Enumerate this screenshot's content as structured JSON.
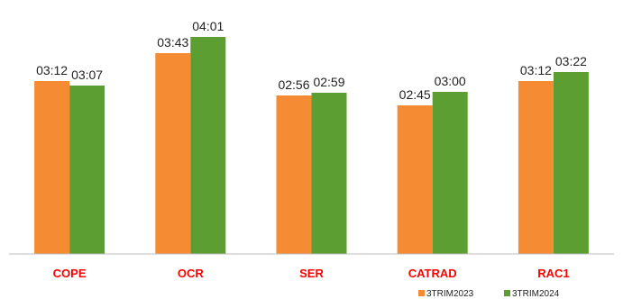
{
  "chart_data": {
    "type": "bar",
    "title": "",
    "xlabel": "",
    "ylabel": "",
    "categories": [
      "COPE",
      "OCR",
      "SER",
      "CATRAD",
      "RAC1"
    ],
    "series": [
      {
        "name": "3TRIM2023",
        "color": "#f58b33",
        "values": [
          192,
          223,
          176,
          165,
          192
        ],
        "labels": [
          "03:12",
          "03:43",
          "02:56",
          "02:45",
          "03:12"
        ]
      },
      {
        "name": "3TRIM2024",
        "color": "#5c9e32",
        "values": [
          187,
          241,
          179,
          180,
          202
        ],
        "labels": [
          "03:07",
          "04:01",
          "02:59",
          "03:00",
          "03:22"
        ]
      }
    ],
    "ylim": [
      0,
      261
    ],
    "grid": false,
    "legend_position": "bottom-right",
    "category_label_color": "#ff0000"
  }
}
